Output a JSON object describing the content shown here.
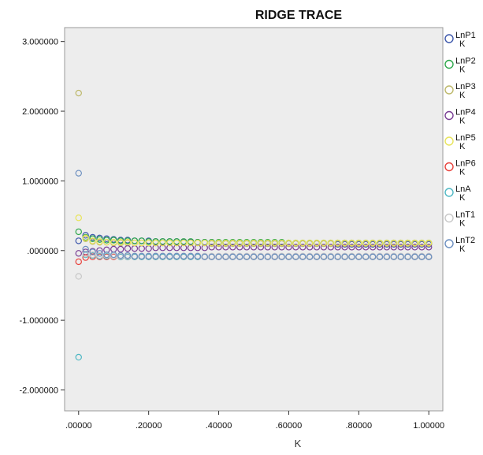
{
  "chart_data": {
    "type": "scatter",
    "title": "RIDGE TRACE",
    "xlabel": "K",
    "ylabel": "",
    "xlim": [
      -0.04,
      1.04
    ],
    "ylim": [
      -2.3,
      3.2
    ],
    "grid": false,
    "legend_position": "right",
    "x_ticks": [
      {
        "value": 0.0,
        "label": ".00000"
      },
      {
        "value": 0.2,
        "label": ".20000"
      },
      {
        "value": 0.4,
        "label": ".40000"
      },
      {
        "value": 0.6,
        "label": ".60000"
      },
      {
        "value": 0.8,
        "label": ".80000"
      },
      {
        "value": 1.0,
        "label": "1.00000"
      }
    ],
    "y_ticks": [
      {
        "value": 3.0,
        "label": "3.000000"
      },
      {
        "value": 2.0,
        "label": "2.000000"
      },
      {
        "value": 1.0,
        "label": "1.000000"
      },
      {
        "value": 0.0,
        "label": ".000000"
      },
      {
        "value": -1.0,
        "label": "-1.000000"
      },
      {
        "value": -2.0,
        "label": "-2.000000"
      }
    ],
    "x": [
      0,
      0.02,
      0.04,
      0.06,
      0.08,
      0.1,
      0.12,
      0.14,
      0.16,
      0.18,
      0.2,
      0.22,
      0.24,
      0.26,
      0.28,
      0.3,
      0.32,
      0.34,
      0.36,
      0.38,
      0.4,
      0.42,
      0.44,
      0.46,
      0.48,
      0.5,
      0.52,
      0.54,
      0.56,
      0.58,
      0.6,
      0.62,
      0.64,
      0.66,
      0.68,
      0.7,
      0.72,
      0.74,
      0.76,
      0.78,
      0.8,
      0.82,
      0.84,
      0.86,
      0.88,
      0.9,
      0.92,
      0.94,
      0.96,
      0.98,
      1.0
    ],
    "series": [
      {
        "name": "LnP1",
        "sub": "K",
        "color": "#3e58ac",
        "values": [
          0.14,
          0.22,
          0.19,
          0.18,
          0.17,
          0.16,
          0.15,
          0.15,
          0.14,
          0.14,
          0.14,
          0.13,
          0.13,
          0.13,
          0.13,
          0.12,
          0.12,
          0.12,
          0.12,
          0.12,
          0.11,
          0.11,
          0.11,
          0.11,
          0.11,
          0.11,
          0.1,
          0.1,
          0.1,
          0.1,
          0.1,
          0.1,
          0.1,
          0.1,
          0.1,
          0.1,
          0.1,
          0.09,
          0.09,
          0.09,
          0.09,
          0.09,
          0.09,
          0.09,
          0.09,
          0.09,
          0.09,
          0.09,
          0.09,
          0.09,
          0.09
        ]
      },
      {
        "name": "LnP2",
        "sub": "K",
        "color": "#2ea84c",
        "values": [
          0.27,
          0.19,
          0.17,
          0.16,
          0.15,
          0.15,
          0.14,
          0.14,
          0.14,
          0.14,
          0.13,
          0.13,
          0.13,
          0.13,
          0.13,
          0.13,
          0.13,
          0.12,
          0.12,
          0.12,
          0.12,
          0.12,
          0.12,
          0.12,
          0.12,
          0.12,
          0.12,
          0.12,
          0.12,
          0.12,
          0.11,
          0.11,
          0.11,
          0.11,
          0.11,
          0.11,
          0.11,
          0.11,
          0.11,
          0.11,
          0.11,
          0.11,
          0.11,
          0.11,
          0.11,
          0.11,
          0.11,
          0.11,
          0.11,
          0.11,
          0.11
        ]
      },
      {
        "name": "LnP3",
        "sub": "K",
        "color": "#bdb86a",
        "values": [
          2.26,
          0.17,
          0.13,
          0.12,
          0.12,
          0.11,
          0.11,
          0.11,
          0.11,
          0.11,
          0.11,
          0.11,
          0.11,
          0.11,
          0.11,
          0.11,
          0.11,
          0.11,
          0.11,
          0.1,
          0.1,
          0.1,
          0.1,
          0.1,
          0.1,
          0.1,
          0.1,
          0.1,
          0.1,
          0.1,
          0.1,
          0.1,
          0.1,
          0.1,
          0.1,
          0.1,
          0.1,
          0.1,
          0.1,
          0.1,
          0.1,
          0.1,
          0.1,
          0.1,
          0.1,
          0.1,
          0.1,
          0.1,
          0.1,
          0.1,
          0.1
        ]
      },
      {
        "name": "LnP4",
        "sub": "K",
        "color": "#7a3f95",
        "values": [
          -0.04,
          -0.02,
          -0.01,
          0.0,
          0.01,
          0.02,
          0.02,
          0.03,
          0.03,
          0.03,
          0.03,
          0.04,
          0.04,
          0.04,
          0.04,
          0.04,
          0.04,
          0.04,
          0.04,
          0.05,
          0.05,
          0.05,
          0.05,
          0.05,
          0.05,
          0.05,
          0.05,
          0.05,
          0.05,
          0.05,
          0.05,
          0.05,
          0.05,
          0.05,
          0.05,
          0.05,
          0.05,
          0.05,
          0.05,
          0.05,
          0.05,
          0.05,
          0.05,
          0.05,
          0.05,
          0.05,
          0.05,
          0.05,
          0.05,
          0.05,
          0.05
        ]
      },
      {
        "name": "LnP5",
        "sub": "K",
        "color": "#e8e45a",
        "values": [
          0.47,
          0.18,
          0.14,
          0.13,
          0.12,
          0.12,
          0.12,
          0.12,
          0.11,
          0.11,
          0.11,
          0.11,
          0.11,
          0.11,
          0.11,
          0.11,
          0.11,
          0.11,
          0.11,
          0.11,
          0.11,
          0.11,
          0.11,
          0.11,
          0.11,
          0.11,
          0.11,
          0.11,
          0.11,
          0.11,
          0.11,
          0.11,
          0.11,
          0.11,
          0.11,
          0.11,
          0.11,
          0.11,
          0.11,
          0.11,
          0.11,
          0.11,
          0.11,
          0.11,
          0.11,
          0.11,
          0.11,
          0.11,
          0.11,
          0.11,
          0.11
        ]
      },
      {
        "name": "LnP6",
        "sub": "K",
        "color": "#e8413b",
        "values": [
          -0.16,
          -0.1,
          -0.09,
          -0.09,
          -0.09,
          -0.09,
          -0.09,
          -0.09,
          -0.09,
          -0.09,
          -0.09,
          -0.09,
          -0.09,
          -0.09,
          -0.09,
          -0.09,
          -0.09,
          -0.09,
          -0.09,
          -0.09,
          -0.09,
          -0.09,
          -0.09,
          -0.09,
          -0.09,
          -0.09,
          -0.09,
          -0.09,
          -0.09,
          -0.09,
          -0.09,
          -0.09,
          -0.09,
          -0.09,
          -0.09,
          -0.09,
          -0.09,
          -0.09,
          -0.09,
          -0.09,
          -0.09,
          -0.09,
          -0.09,
          -0.09,
          -0.09,
          -0.09,
          -0.09,
          -0.09,
          -0.09,
          -0.09,
          -0.09
        ]
      },
      {
        "name": "LnA",
        "sub": "K",
        "color": "#4fb8c4",
        "values": [
          -1.53,
          -0.06,
          -0.07,
          -0.08,
          -0.08,
          -0.08,
          -0.09,
          -0.09,
          -0.09,
          -0.09,
          -0.09,
          -0.09,
          -0.09,
          -0.09,
          -0.09,
          -0.09,
          -0.09,
          -0.09,
          -0.09,
          -0.09,
          -0.09,
          -0.09,
          -0.09,
          -0.09,
          -0.09,
          -0.09,
          -0.09,
          -0.09,
          -0.09,
          -0.09,
          -0.09,
          -0.09,
          -0.09,
          -0.09,
          -0.09,
          -0.09,
          -0.09,
          -0.09,
          -0.09,
          -0.09,
          -0.09,
          -0.09,
          -0.09,
          -0.09,
          -0.09,
          -0.09,
          -0.09,
          -0.09,
          -0.09,
          -0.09,
          -0.09
        ]
      },
      {
        "name": "LnT1",
        "sub": "K",
        "color": "#c8c8c8",
        "values": [
          -0.37,
          -0.05,
          -0.06,
          -0.07,
          -0.07,
          -0.08,
          -0.08,
          -0.08,
          -0.08,
          -0.08,
          -0.08,
          -0.08,
          -0.08,
          -0.08,
          -0.08,
          -0.08,
          -0.08,
          -0.08,
          -0.08,
          -0.08,
          -0.08,
          -0.08,
          -0.08,
          -0.08,
          -0.08,
          -0.08,
          -0.08,
          -0.08,
          -0.08,
          -0.08,
          -0.08,
          -0.08,
          -0.08,
          -0.08,
          -0.08,
          -0.08,
          -0.08,
          -0.08,
          -0.08,
          -0.08,
          -0.08,
          -0.08,
          -0.08,
          -0.08,
          -0.08,
          -0.08,
          -0.08,
          -0.08,
          -0.08,
          -0.08,
          -0.08
        ]
      },
      {
        "name": "LnT2",
        "sub": "K",
        "color": "#6c8fc0",
        "values": [
          1.11,
          0.02,
          -0.02,
          -0.04,
          -0.06,
          -0.06,
          -0.07,
          -0.07,
          -0.08,
          -0.08,
          -0.08,
          -0.08,
          -0.08,
          -0.08,
          -0.08,
          -0.08,
          -0.08,
          -0.08,
          -0.09,
          -0.09,
          -0.09,
          -0.09,
          -0.09,
          -0.09,
          -0.09,
          -0.09,
          -0.09,
          -0.09,
          -0.09,
          -0.09,
          -0.09,
          -0.09,
          -0.09,
          -0.09,
          -0.09,
          -0.09,
          -0.09,
          -0.09,
          -0.09,
          -0.09,
          -0.09,
          -0.09,
          -0.09,
          -0.09,
          -0.09,
          -0.09,
          -0.09,
          -0.09,
          -0.09,
          -0.09,
          -0.09
        ]
      }
    ]
  }
}
